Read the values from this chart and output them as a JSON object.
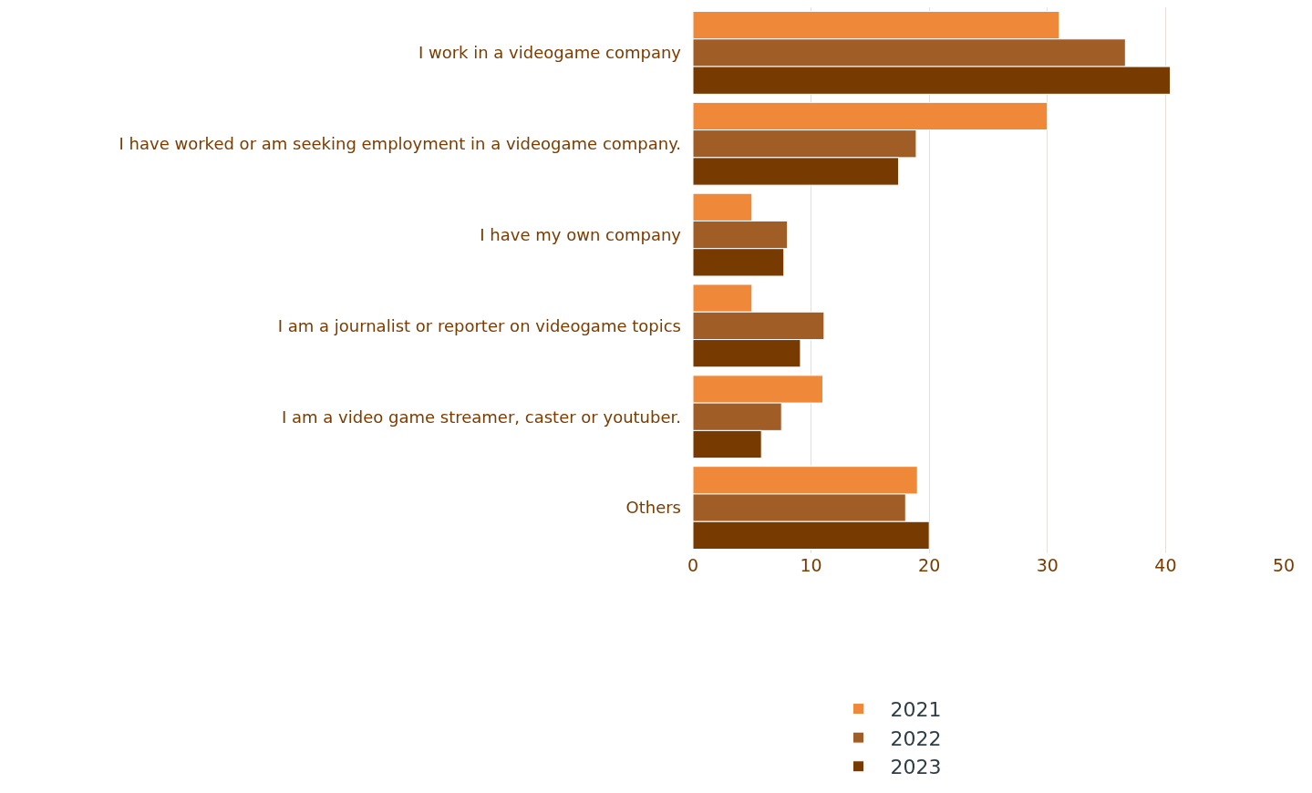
{
  "chart_data": {
    "type": "bar",
    "orientation": "horizontal",
    "categories": [
      "I work in a videogame company",
      "I have worked or am seeking employment in a videogame company.",
      "I have my own company",
      "I am a journalist or reporter on videogame topics",
      "I am a video game streamer, caster or youtuber.",
      "Others"
    ],
    "series": [
      {
        "name": "2021",
        "color": "#f0883a",
        "values": [
          31.0,
          30.0,
          5.0,
          5.0,
          11.0,
          19.0
        ]
      },
      {
        "name": "2022",
        "color": "#a05e26",
        "values": [
          36.6,
          18.9,
          8.0,
          11.1,
          7.5,
          18.0
        ]
      },
      {
        "name": "2023",
        "color": "#773a00",
        "values": [
          40.4,
          17.4,
          7.7,
          9.1,
          5.8,
          20.0
        ]
      }
    ],
    "xlim": [
      0,
      50
    ],
    "xticks": [
      0,
      10,
      20,
      30,
      40,
      50
    ],
    "grid": "x",
    "legend": "bottom"
  }
}
